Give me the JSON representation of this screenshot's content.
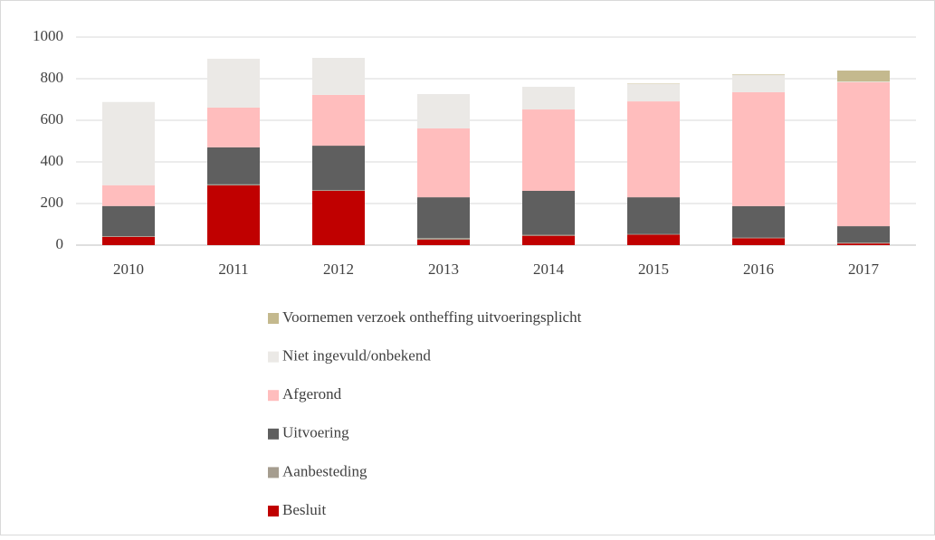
{
  "chart_data": {
    "type": "stacked_bar",
    "categories": [
      "2010",
      "2011",
      "2012",
      "2013",
      "2014",
      "2015",
      "2016",
      "2017"
    ],
    "series": [
      {
        "name": "Besluit",
        "color": "#c00000",
        "values": [
          40,
          287,
          261,
          26,
          45,
          50,
          33,
          8
        ]
      },
      {
        "name": "Aanbesteding",
        "color": "#a59d8f",
        "values": [
          3,
          5,
          4,
          8,
          5,
          3,
          3,
          4
        ]
      },
      {
        "name": "Uitvoering",
        "color": "#5f5f5f",
        "values": [
          145,
          178,
          213,
          196,
          211,
          177,
          151,
          79
        ]
      },
      {
        "name": "Afgerond",
        "color": "#ffbdbd",
        "values": [
          100,
          191,
          244,
          331,
          391,
          461,
          548,
          692
        ]
      },
      {
        "name": "Niet ingevuld/onbekend",
        "color": "#ebe9e6",
        "values": [
          400,
          235,
          178,
          165,
          109,
          83,
          82,
          3
        ]
      },
      {
        "name": "Voornemen verzoek ontheffing uitvoeringsplicht",
        "color": "#c4b98e",
        "values": [
          0,
          0,
          0,
          0,
          0,
          2,
          3,
          53
        ]
      }
    ],
    "ylim": [
      0,
      1000
    ],
    "yticks": [
      0,
      200,
      400,
      600,
      800,
      1000
    ],
    "grid": true
  }
}
